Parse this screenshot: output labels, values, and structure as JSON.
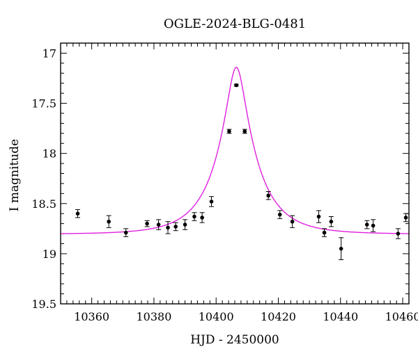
{
  "chart_data": {
    "type": "scatter",
    "title": "OGLE-2024-BLG-0481",
    "xlabel": "HJD - 2450000",
    "ylabel": "I magnitude",
    "xlim": [
      10350,
      10462
    ],
    "ylim": [
      19.5,
      16.9
    ],
    "y_inverted": true,
    "grid": false,
    "x_ticks": [
      10360,
      10380,
      10400,
      10420,
      10440,
      10460
    ],
    "x_tick_labels": [
      "10360",
      "10380",
      "10400",
      "10420",
      "10440",
      "10460"
    ],
    "y_ticks": [
      17,
      17.5,
      18,
      18.5,
      19,
      19.5
    ],
    "y_tick_labels": [
      "17",
      "17.5",
      "18",
      "18.5",
      "19",
      "19.5"
    ],
    "point_color": "#000000",
    "curve_color": "#e020e0",
    "series": [
      {
        "kind": "points_with_errorbars",
        "points": [
          {
            "x": 10355.5,
            "y": 18.6,
            "err": 0.04
          },
          {
            "x": 10365.5,
            "y": 18.68,
            "err": 0.06
          },
          {
            "x": 10371.0,
            "y": 18.79,
            "err": 0.04
          },
          {
            "x": 10377.8,
            "y": 18.7,
            "err": 0.03
          },
          {
            "x": 10381.5,
            "y": 18.71,
            "err": 0.05
          },
          {
            "x": 10384.5,
            "y": 18.74,
            "err": 0.06
          },
          {
            "x": 10387.0,
            "y": 18.73,
            "err": 0.04
          },
          {
            "x": 10390.0,
            "y": 18.71,
            "err": 0.05
          },
          {
            "x": 10393.0,
            "y": 18.63,
            "err": 0.04
          },
          {
            "x": 10395.5,
            "y": 18.64,
            "err": 0.05
          },
          {
            "x": 10398.5,
            "y": 18.48,
            "err": 0.05
          },
          {
            "x": 10404.2,
            "y": 17.78,
            "err": 0.02
          },
          {
            "x": 10406.5,
            "y": 17.32,
            "err": 0.01
          },
          {
            "x": 10409.2,
            "y": 17.78,
            "err": 0.02
          },
          {
            "x": 10416.8,
            "y": 18.42,
            "err": 0.04
          },
          {
            "x": 10420.5,
            "y": 18.61,
            "err": 0.04
          },
          {
            "x": 10424.5,
            "y": 18.68,
            "err": 0.06
          },
          {
            "x": 10433.0,
            "y": 18.63,
            "err": 0.06
          },
          {
            "x": 10434.8,
            "y": 18.79,
            "err": 0.04
          },
          {
            "x": 10437.0,
            "y": 18.68,
            "err": 0.05
          },
          {
            "x": 10440.2,
            "y": 18.95,
            "err": 0.11
          },
          {
            "x": 10448.5,
            "y": 18.71,
            "err": 0.04
          },
          {
            "x": 10450.5,
            "y": 18.72,
            "err": 0.06
          },
          {
            "x": 10458.5,
            "y": 18.8,
            "err": 0.05
          },
          {
            "x": 10461.0,
            "y": 18.64,
            "err": 0.04
          }
        ]
      },
      {
        "kind": "model_curve",
        "model": "paczynski",
        "t0": 10406.5,
        "u0": 0.22,
        "tE": 13.0,
        "baseline_mag": 18.805
      }
    ]
  }
}
